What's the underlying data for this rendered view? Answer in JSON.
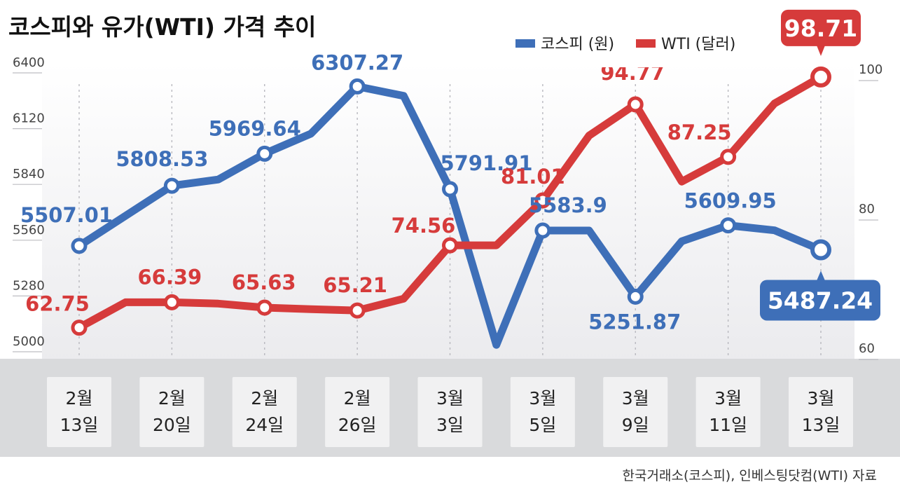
{
  "title": "코스피와 유가(WTI) 가격 추이",
  "legend": [
    {
      "name": "코스피 (원)",
      "color": "#3e6fb8"
    },
    {
      "name": "WTI (달러)",
      "color": "#d63b3b"
    }
  ],
  "source": "한국거래소(코스피), 인베스팅닷컴(WTI) 자료",
  "colors": {
    "kospi": "#3e6fb8",
    "wti": "#d63b3b",
    "band": "#d9dadc",
    "date_box": "#f1f1f2"
  },
  "chart_data": {
    "type": "line",
    "x_labels": [
      {
        "month": "2월",
        "day": "13일"
      },
      {
        "month": "2월",
        "day": "20일"
      },
      {
        "month": "2월",
        "day": "24일"
      },
      {
        "month": "2월",
        "day": "26일"
      },
      {
        "month": "3월",
        "day": "3일"
      },
      {
        "month": "3월",
        "day": "5일"
      },
      {
        "month": "3월",
        "day": "9일"
      },
      {
        "month": "3월",
        "day": "11일"
      },
      {
        "month": "3월",
        "day": "13일"
      }
    ],
    "y_left": {
      "ticks": [
        "6400",
        "6120",
        "5840",
        "5560",
        "5280",
        "5000"
      ],
      "range": [
        5000,
        6400
      ]
    },
    "y_right": {
      "ticks": [
        "100",
        "80",
        "60"
      ],
      "range": [
        60,
        100
      ]
    },
    "series": [
      {
        "name": "코스피 (원)",
        "axis": "left",
        "values": [
          5507.01,
          5808.53,
          5969.64,
          6307.27,
          5791.91,
          5583.9,
          5251.87,
          5609.95,
          5487.24
        ],
        "labels": [
          "5507.01",
          "5808.53",
          "5969.64",
          "6307.27",
          "5791.91",
          "5583.9",
          "5251.87",
          "5609.95",
          "5487.24"
        ],
        "path": [
          [
            0,
            5507.01
          ],
          [
            1,
            5808.53
          ],
          [
            1.5,
            5840
          ],
          [
            2,
            5969.64
          ],
          [
            2.5,
            6070
          ],
          [
            3,
            6307.27
          ],
          [
            3.5,
            6260
          ],
          [
            4,
            5791.91
          ],
          [
            4.5,
            5010
          ],
          [
            5,
            5583.9
          ],
          [
            5.5,
            5583.9
          ],
          [
            6,
            5251.87
          ],
          [
            6.5,
            5530
          ],
          [
            7,
            5609.95
          ],
          [
            7.5,
            5585
          ],
          [
            8,
            5487.24
          ]
        ]
      },
      {
        "name": "WTI (달러)",
        "axis": "right",
        "values": [
          62.75,
          66.39,
          65.63,
          65.21,
          74.56,
          81.01,
          94.77,
          87.25,
          98.71
        ],
        "labels": [
          "62.75",
          "66.39",
          "65.63",
          "65.21",
          "74.56",
          "81.01",
          "94.77",
          "87.25",
          "98.71"
        ],
        "path": [
          [
            0,
            62.75
          ],
          [
            0.5,
            66.39
          ],
          [
            1,
            66.39
          ],
          [
            1.5,
            66.2
          ],
          [
            2,
            65.63
          ],
          [
            2.5,
            65.4
          ],
          [
            3,
            65.21
          ],
          [
            3.5,
            66.9
          ],
          [
            4,
            74.56
          ],
          [
            4.5,
            74.56
          ],
          [
            5,
            81.01
          ],
          [
            5.5,
            90.3
          ],
          [
            6,
            94.77
          ],
          [
            6.5,
            83.7
          ],
          [
            7,
            87.25
          ],
          [
            7.5,
            94.9
          ],
          [
            8,
            98.71
          ]
        ]
      }
    ]
  }
}
